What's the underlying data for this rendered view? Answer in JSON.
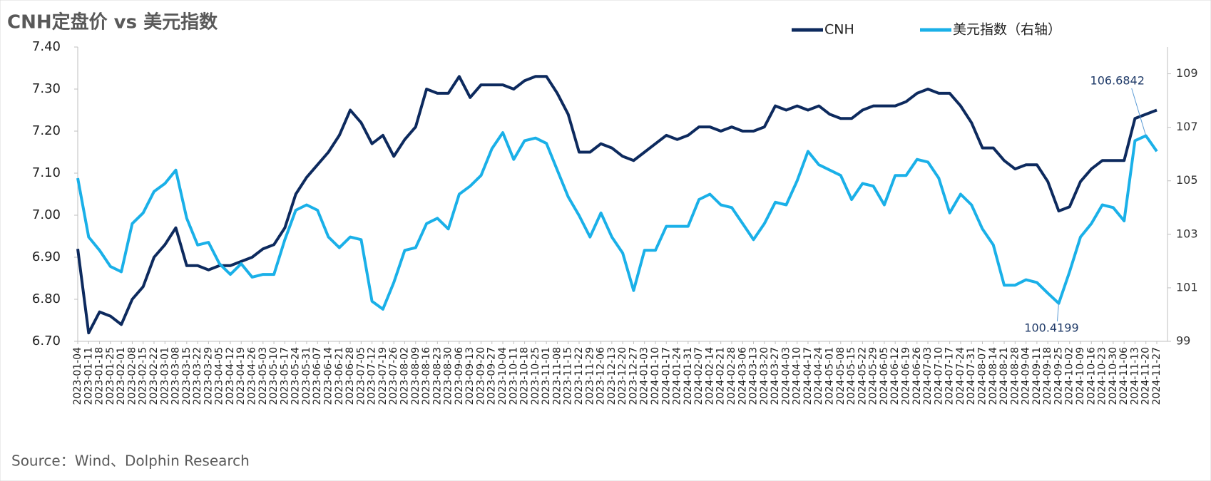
{
  "chart_data": {
    "type": "line",
    "title": "CNH定盘价 vs 美元指数",
    "source": "Source：Wind、Dolphin Research",
    "categories": [
      "2023-01-04",
      "2023-01-11",
      "2023-01-18",
      "2023-01-25",
      "2023-02-01",
      "2023-02-08",
      "2023-02-15",
      "2023-02-22",
      "2023-03-01",
      "2023-03-08",
      "2023-03-15",
      "2023-03-22",
      "2023-03-29",
      "2023-04-05",
      "2023-04-12",
      "2023-04-19",
      "2023-04-26",
      "2023-05-03",
      "2023-05-10",
      "2023-05-17",
      "2023-05-24",
      "2023-05-31",
      "2023-06-07",
      "2023-06-14",
      "2023-06-21",
      "2023-06-28",
      "2023-07-05",
      "2023-07-12",
      "2023-07-19",
      "2023-07-26",
      "2023-08-02",
      "2023-08-09",
      "2023-08-16",
      "2023-08-23",
      "2023-08-30",
      "2023-09-06",
      "2023-09-13",
      "2023-09-20",
      "2023-09-27",
      "2023-10-04",
      "2023-10-11",
      "2023-10-18",
      "2023-10-25",
      "2023-11-01",
      "2023-11-08",
      "2023-11-15",
      "2023-11-22",
      "2023-11-29",
      "2023-12-06",
      "2023-12-13",
      "2023-12-20",
      "2023-12-27",
      "2024-01-03",
      "2024-01-10",
      "2024-01-17",
      "2024-01-24",
      "2024-01-31",
      "2024-02-07",
      "2024-02-14",
      "2024-02-21",
      "2024-02-28",
      "2024-03-06",
      "2024-03-13",
      "2024-03-20",
      "2024-03-27",
      "2024-04-03",
      "2024-04-10",
      "2024-04-17",
      "2024-04-24",
      "2024-05-01",
      "2024-05-08",
      "2024-05-15",
      "2024-05-22",
      "2024-05-29",
      "2024-06-05",
      "2024-06-12",
      "2024-06-19",
      "2024-06-26",
      "2024-07-03",
      "2024-07-10",
      "2024-07-17",
      "2024-07-24",
      "2024-07-31",
      "2024-08-07",
      "2024-08-14",
      "2024-08-21",
      "2024-08-28",
      "2024-09-04",
      "2024-09-11",
      "2024-09-18",
      "2024-09-25",
      "2024-10-02",
      "2024-10-09",
      "2024-10-16",
      "2024-10-23",
      "2024-10-30",
      "2024-11-06",
      "2024-11-13",
      "2024-11-20",
      "2024-11-27"
    ],
    "series": [
      {
        "name": "CNH",
        "color": "#0d2a5e",
        "values": [
          6.92,
          6.72,
          6.77,
          6.76,
          6.74,
          6.8,
          6.83,
          6.9,
          6.93,
          6.97,
          6.88,
          6.88,
          6.87,
          6.88,
          6.88,
          6.89,
          6.9,
          6.92,
          6.93,
          6.97,
          7.05,
          7.09,
          7.12,
          7.15,
          7.19,
          7.25,
          7.22,
          7.17,
          7.19,
          7.14,
          7.18,
          7.21,
          7.3,
          7.29,
          7.29,
          7.33,
          7.28,
          7.31,
          7.31,
          7.31,
          7.3,
          7.32,
          7.33,
          7.33,
          7.29,
          7.24,
          7.15,
          7.15,
          7.17,
          7.16,
          7.14,
          7.13,
          7.15,
          7.17,
          7.19,
          7.18,
          7.19,
          7.21,
          7.21,
          7.2,
          7.21,
          7.2,
          7.2,
          7.21,
          7.26,
          7.25,
          7.26,
          7.25,
          7.26,
          7.24,
          7.23,
          7.23,
          7.25,
          7.26,
          7.26,
          7.26,
          7.27,
          7.29,
          7.3,
          7.29,
          7.29,
          7.26,
          7.22,
          7.16,
          7.16,
          7.13,
          7.11,
          7.12,
          7.12,
          7.08,
          7.01,
          7.02,
          7.08,
          7.11,
          7.13,
          7.13,
          7.13,
          7.23,
          7.24,
          7.25
        ]
      },
      {
        "name": "美元指数（右轴）",
        "color": "#1ab0e8",
        "axis": "y2",
        "values": [
          105.1,
          102.9,
          102.4,
          101.8,
          101.6,
          103.4,
          103.8,
          104.6,
          104.9,
          105.4,
          103.6,
          102.6,
          102.7,
          101.9,
          101.5,
          101.9,
          101.4,
          101.5,
          101.5,
          102.8,
          103.9,
          104.1,
          103.9,
          102.9,
          102.5,
          102.9,
          102.8,
          100.5,
          100.2,
          101.2,
          102.4,
          102.5,
          103.4,
          103.6,
          103.2,
          104.5,
          104.8,
          105.2,
          106.2,
          106.8,
          105.8,
          106.5,
          106.6,
          106.4,
          105.4,
          104.4,
          103.7,
          102.9,
          103.8,
          102.9,
          102.3,
          100.9,
          102.4,
          102.4,
          103.3,
          103.3,
          103.3,
          104.3,
          104.5,
          104.1,
          104.0,
          103.4,
          102.8,
          103.4,
          104.2,
          104.1,
          105.0,
          106.1,
          105.6,
          105.4,
          105.2,
          104.3,
          104.9,
          104.8,
          104.1,
          105.2,
          105.2,
          105.8,
          105.7,
          105.1,
          103.8,
          104.5,
          104.1,
          103.2,
          102.6,
          101.1,
          101.1,
          101.3,
          101.2,
          100.8,
          100.4199,
          101.6,
          102.9,
          103.4,
          104.1,
          104.0,
          103.5,
          106.5,
          106.6842,
          106.1
        ],
        "value_labels": [
          null,
          null,
          null,
          null,
          null,
          null,
          null,
          null,
          null,
          null,
          null,
          null,
          null,
          null,
          null,
          null,
          null,
          null,
          null,
          null,
          null,
          null,
          null,
          null,
          null,
          null,
          null,
          null,
          null,
          null,
          null,
          null,
          null,
          null,
          null,
          null,
          null,
          null,
          null,
          null,
          null,
          null,
          null,
          null,
          null,
          null,
          null,
          null,
          null,
          null,
          null,
          null,
          null,
          null,
          null,
          null,
          null,
          null,
          null,
          null,
          null,
          null,
          null,
          null,
          null,
          null,
          null,
          null,
          null,
          null,
          null,
          null,
          null,
          null,
          null,
          null,
          null,
          null,
          null,
          null,
          null,
          null,
          null,
          null,
          null,
          null,
          null,
          null,
          null,
          null,
          "100.4199",
          null,
          null,
          null,
          null,
          null,
          null,
          null,
          "106.6842",
          null
        ]
      }
    ],
    "ylim": [
      6.7,
      7.4
    ],
    "yticks": [
      {
        "value": 6.7,
        "label": "6.70"
      },
      {
        "value": 6.8,
        "label": "6.80"
      },
      {
        "value": 6.9,
        "label": "6.90"
      },
      {
        "value": 7.0,
        "label": "7.00"
      },
      {
        "value": 7.1,
        "label": "7.10"
      },
      {
        "value": 7.2,
        "label": "7.20"
      },
      {
        "value": 7.3,
        "label": "7.30"
      },
      {
        "value": 7.4,
        "label": "7.40"
      }
    ],
    "y2lim": [
      99,
      110
    ],
    "y2ticks": [
      99,
      101,
      103,
      105,
      107,
      109
    ],
    "legend": "top"
  }
}
